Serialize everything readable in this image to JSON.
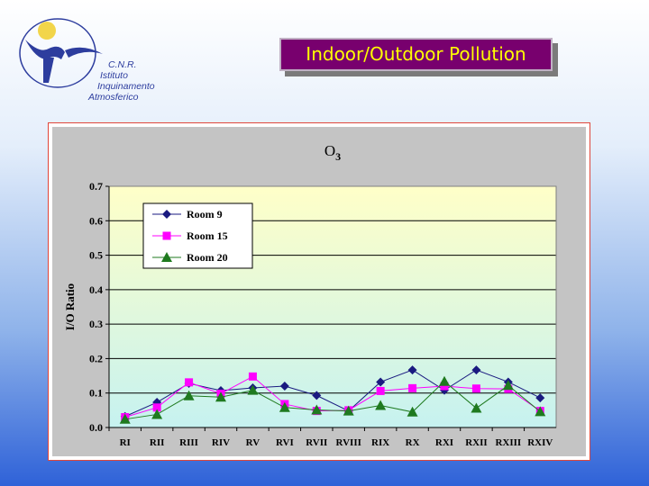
{
  "header": {
    "title": "Indoor/Outdoor Pollution",
    "logo_lines": [
      "C.N.R.",
      "Istituto",
      "Inquinamento",
      "Atmosferico"
    ]
  },
  "colors": {
    "title_bg": "#78006e",
    "title_text": "#ffff00",
    "plot_top": "#ffffc8",
    "plot_bottom": "#c6f2f0",
    "series": [
      "#1a1a80",
      "#ff00ff",
      "#1f7a1f"
    ]
  },
  "chart_data": {
    "type": "line",
    "title_main": "O",
    "title_sub": "3",
    "xlabel": "",
    "ylabel": "I/O Ratio",
    "ylim": [
      0.0,
      0.7
    ],
    "yticks": [
      "0.0",
      "0.1",
      "0.2",
      "0.3",
      "0.4",
      "0.5",
      "0.6",
      "0.7"
    ],
    "grid": true,
    "legend_position": "top-left",
    "categories": [
      "RI",
      "RII",
      "RIII",
      "RIV",
      "RV",
      "RVI",
      "RVII",
      "RVIII",
      "RIX",
      "RX",
      "RXI",
      "RXII",
      "RXIII",
      "RXIV"
    ],
    "series": [
      {
        "name": "Room 9",
        "marker": "diamond",
        "values": [
          0.032,
          0.073,
          0.128,
          0.107,
          0.115,
          0.12,
          0.093,
          0.048,
          0.132,
          0.167,
          0.108,
          0.167,
          0.132,
          0.086
        ]
      },
      {
        "name": "Room 15",
        "marker": "square",
        "values": [
          0.03,
          0.058,
          0.131,
          0.098,
          0.148,
          0.068,
          0.048,
          0.05,
          0.106,
          0.114,
          0.12,
          0.113,
          0.112,
          0.048
        ]
      },
      {
        "name": "Room 20",
        "marker": "triangle",
        "values": [
          0.024,
          0.038,
          0.092,
          0.088,
          0.108,
          0.058,
          0.051,
          0.048,
          0.064,
          0.045,
          0.134,
          0.056,
          0.122,
          0.046
        ]
      }
    ]
  }
}
